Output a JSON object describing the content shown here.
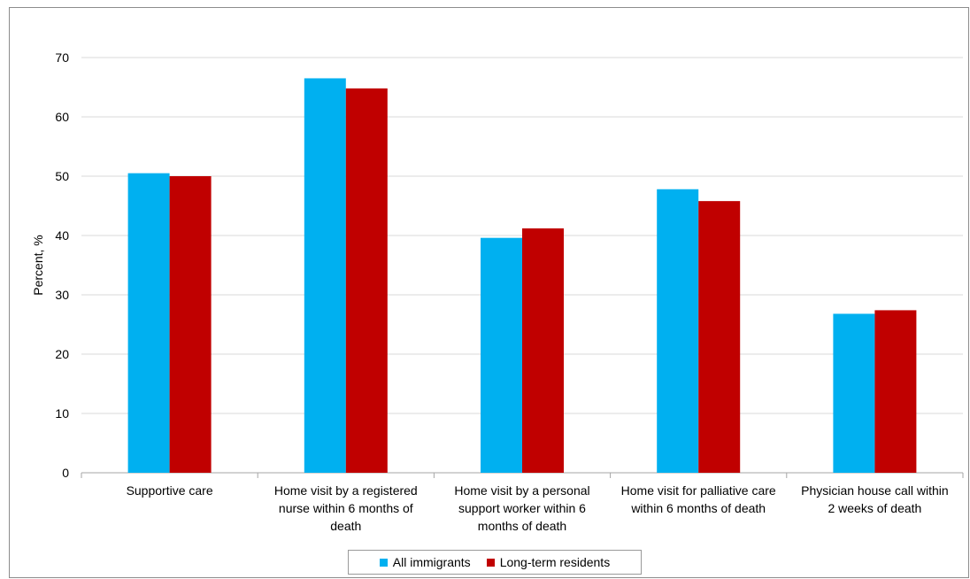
{
  "chart_data": {
    "type": "bar",
    "title": "",
    "xlabel": "",
    "ylabel": "Percent, %",
    "ylim": [
      0,
      70
    ],
    "yticks": [
      0,
      10,
      20,
      30,
      40,
      50,
      60,
      70
    ],
    "grid": true,
    "legend_position": "bottom",
    "categories": [
      [
        "Supportive care"
      ],
      [
        "Home visit by a registered",
        "nurse within 6 months of",
        "death"
      ],
      [
        "Home visit by a personal",
        "support worker within 6",
        "months of death"
      ],
      [
        "Home visit for palliative care",
        "within 6 months of death"
      ],
      [
        "Physician house call within",
        "2 weeks of death"
      ]
    ],
    "series": [
      {
        "name": "All immigrants",
        "color": "#00b0f0",
        "values": [
          50.5,
          66.5,
          39.6,
          47.8,
          26.8
        ]
      },
      {
        "name": "Long-term residents",
        "color": "#c00000",
        "values": [
          50.0,
          64.8,
          41.2,
          45.8,
          27.4
        ]
      }
    ]
  }
}
